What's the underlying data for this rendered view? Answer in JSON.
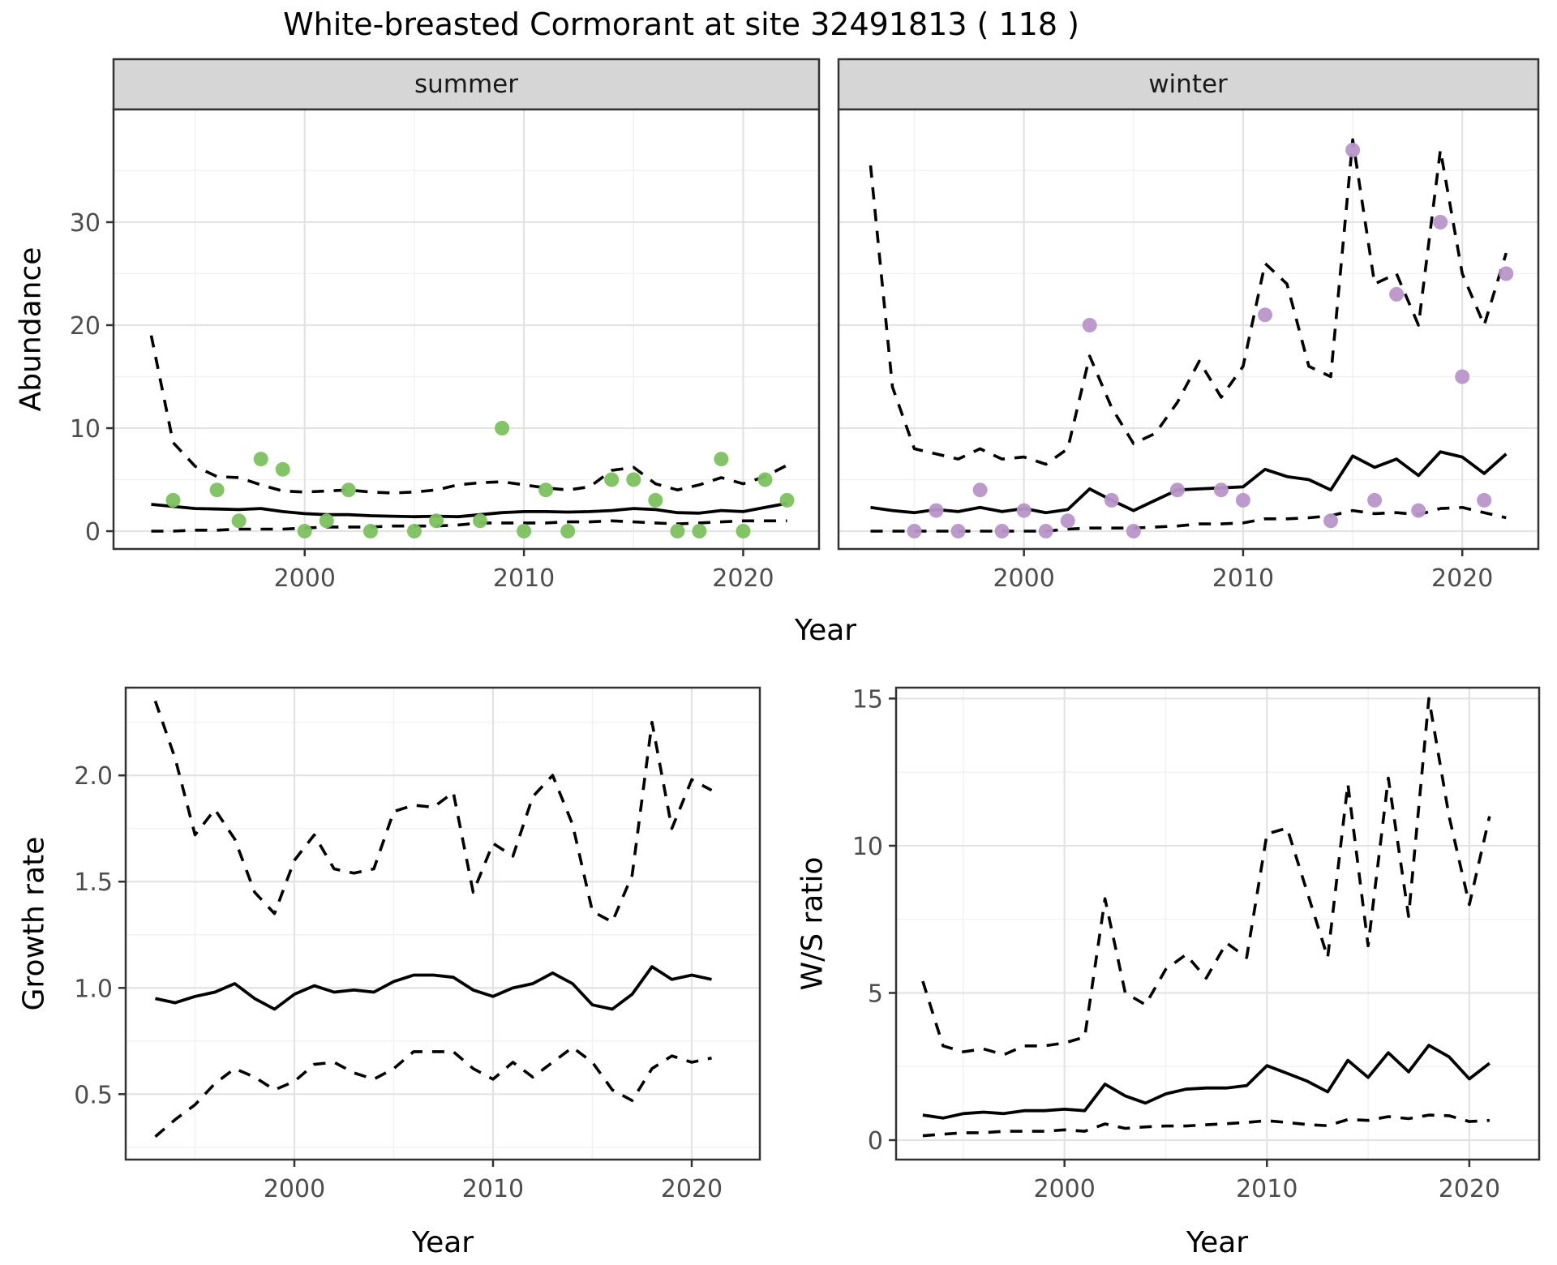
{
  "title": "White-breasted Cormorant at site 32491813 ( 118 )",
  "labels": {
    "facet_summer": "summer",
    "facet_winter": "winter",
    "abundance": "Abundance",
    "year": "Year",
    "growth_rate": "Growth rate",
    "ws_ratio": "W/S ratio"
  },
  "colors": {
    "background": "#ffffff",
    "strip_fill": "#d6d6d6",
    "panel_border": "#333333",
    "grid_major": "#e3e3e3",
    "grid_minor": "#f1f1f1",
    "tick_label": "#4d4d4d",
    "line": "#000000",
    "summer_point": "#7cc25e",
    "winter_point": "#b896c9"
  },
  "chart_data": {
    "type": "line",
    "description": "Four-panel time-series figure: faceted abundance (summer, winter) with observed points, modeled mean (solid) and credible interval (dashed); plus growth rate and winter/summer ratio panels with mean and CI.",
    "strips": [
      {
        "key": "summer",
        "l": 140,
        "t": 73,
        "r": 1010,
        "b": 135
      },
      {
        "key": "winter",
        "l": 1034,
        "t": 73,
        "r": 1897,
        "b": 135
      }
    ],
    "panels": [
      {
        "key": "summer",
        "px": {
          "l": 140,
          "t": 135,
          "r": 1010,
          "b": 677
        },
        "x": {
          "min": 1991.28,
          "max": 2023.46,
          "major": [
            2000,
            2010,
            2020
          ],
          "minor": [
            1995,
            2005,
            2015
          ],
          "labels": [
            "2000",
            "2010",
            "2020"
          ]
        },
        "y": {
          "min": -1.73,
          "max": 40.94,
          "major": [
            0,
            10,
            20,
            30
          ],
          "minor": [
            5,
            15,
            25,
            35
          ],
          "labels": [
            "0",
            "10",
            "20",
            "30"
          ],
          "show_labels": true
        },
        "years": [
          1993,
          1994,
          1995,
          1996,
          1997,
          1998,
          1999,
          2000,
          2001,
          2002,
          2003,
          2004,
          2005,
          2006,
          2007,
          2008,
          2009,
          2010,
          2011,
          2012,
          2013,
          2014,
          2015,
          2016,
          2017,
          2018,
          2019,
          2020,
          2021,
          2022
        ],
        "mean": [
          2.6,
          2.4,
          2.2,
          2.15,
          2.1,
          2.2,
          1.9,
          1.7,
          1.6,
          1.6,
          1.5,
          1.45,
          1.4,
          1.45,
          1.4,
          1.6,
          1.8,
          1.9,
          1.9,
          1.85,
          1.9,
          2.0,
          2.2,
          2.1,
          1.8,
          1.75,
          2.0,
          1.9,
          2.3,
          2.7
        ],
        "upper": [
          19,
          8.6,
          6.3,
          5.3,
          5.2,
          4.5,
          3.9,
          3.8,
          3.9,
          4.0,
          3.8,
          3.7,
          3.8,
          4.0,
          4.5,
          4.7,
          4.8,
          4.5,
          4.2,
          4.0,
          4.3,
          5.9,
          6.2,
          4.6,
          4.0,
          4.5,
          5.2,
          4.6,
          5.3,
          6.4
        ],
        "lower": [
          0,
          0,
          0.1,
          0.1,
          0.2,
          0.2,
          0.2,
          0.3,
          0.4,
          0.4,
          0.4,
          0.5,
          0.5,
          0.5,
          0.6,
          0.8,
          0.8,
          0.8,
          0.8,
          0.9,
          0.9,
          1.0,
          0.9,
          0.8,
          0.7,
          0.8,
          0.9,
          1.0,
          1.0,
          1.0
        ],
        "points": [
          [
            1994,
            3
          ],
          [
            1996,
            4
          ],
          [
            1997,
            1
          ],
          [
            1998,
            7
          ],
          [
            1999,
            6
          ],
          [
            2000,
            0
          ],
          [
            2001,
            1
          ],
          [
            2002,
            4
          ],
          [
            2003,
            0
          ],
          [
            2005,
            0
          ],
          [
            2006,
            1
          ],
          [
            2008,
            1
          ],
          [
            2009,
            10
          ],
          [
            2010,
            0
          ],
          [
            2011,
            4
          ],
          [
            2012,
            0
          ],
          [
            2014,
            5
          ],
          [
            2015,
            5
          ],
          [
            2016,
            3
          ],
          [
            2017,
            0
          ],
          [
            2018,
            0
          ],
          [
            2019,
            7
          ],
          [
            2020,
            0
          ],
          [
            2021,
            5
          ],
          [
            2022,
            3
          ]
        ],
        "point_color": "#7cc25e"
      },
      {
        "key": "winter",
        "px": {
          "l": 1034,
          "t": 135,
          "r": 1897,
          "b": 677
        },
        "x": {
          "min": 1991.54,
          "max": 2023.47,
          "major": [
            2000,
            2010,
            2020
          ],
          "minor": [
            1995,
            2005,
            2015
          ],
          "labels": [
            "2000",
            "2010",
            "2020"
          ]
        },
        "y": {
          "min": -1.73,
          "max": 40.94,
          "major": [
            0,
            10,
            20,
            30
          ],
          "minor": [
            5,
            15,
            25,
            35
          ],
          "labels": [
            "0",
            "10",
            "20",
            "30"
          ],
          "show_labels": false
        },
        "years": [
          1993,
          1994,
          1995,
          1996,
          1997,
          1998,
          1999,
          2000,
          2001,
          2002,
          2003,
          2004,
          2005,
          2006,
          2007,
          2008,
          2009,
          2010,
          2011,
          2012,
          2013,
          2014,
          2015,
          2016,
          2017,
          2018,
          2019,
          2020,
          2021,
          2022
        ],
        "mean": [
          2.3,
          2.0,
          1.8,
          2.1,
          1.9,
          2.3,
          1.9,
          2.2,
          1.8,
          2.1,
          4.1,
          3.0,
          2.0,
          3.0,
          4.0,
          4.1,
          4.2,
          4.3,
          6.0,
          5.3,
          5.0,
          4.0,
          7.3,
          6.2,
          7.0,
          5.4,
          7.7,
          7.2,
          5.6,
          7.5
        ],
        "upper": [
          35.5,
          14,
          8,
          7.5,
          7,
          8,
          7,
          7.2,
          6.5,
          8,
          17,
          12,
          8.5,
          9.5,
          12.5,
          16.5,
          13,
          16,
          26,
          24,
          16,
          15,
          38,
          24,
          25,
          20,
          37,
          25,
          20,
          27
        ],
        "lower": [
          0,
          0,
          0,
          0,
          0,
          0,
          0,
          0,
          0,
          0.2,
          0.3,
          0.3,
          0.3,
          0.4,
          0.5,
          0.7,
          0.7,
          0.8,
          1.2,
          1.2,
          1.3,
          1.5,
          2.0,
          1.7,
          1.8,
          1.6,
          2.2,
          2.3,
          1.8,
          1.3
        ],
        "points": [
          [
            1995,
            0
          ],
          [
            1996,
            2
          ],
          [
            1997,
            0
          ],
          [
            1998,
            4
          ],
          [
            1999,
            0
          ],
          [
            2000,
            2
          ],
          [
            2001,
            0
          ],
          [
            2002,
            1
          ],
          [
            2003,
            20
          ],
          [
            2004,
            3
          ],
          [
            2005,
            0
          ],
          [
            2007,
            4
          ],
          [
            2009,
            4
          ],
          [
            2010,
            3
          ],
          [
            2011,
            21
          ],
          [
            2014,
            1
          ],
          [
            2015,
            37
          ],
          [
            2016,
            3
          ],
          [
            2017,
            23
          ],
          [
            2018,
            2
          ],
          [
            2019,
            30
          ],
          [
            2020,
            15
          ],
          [
            2021,
            3
          ],
          [
            2022,
            25
          ]
        ],
        "point_color": "#b896c9"
      },
      {
        "key": "growth",
        "px": {
          "l": 155,
          "t": 848,
          "r": 937,
          "b": 1430
        },
        "x": {
          "min": 1991.51,
          "max": 2023.43,
          "major": [
            2000,
            2010,
            2020
          ],
          "minor": [
            1995,
            2005,
            2015
          ],
          "labels": [
            "2000",
            "2010",
            "2020"
          ]
        },
        "y": {
          "min": 0.192,
          "max": 2.413,
          "major": [
            0.5,
            1.0,
            1.5,
            2.0
          ],
          "minor": [
            0.25,
            0.75,
            1.25,
            1.75,
            2.25
          ],
          "labels": [
            "0.5",
            "1.0",
            "1.5",
            "2.0"
          ],
          "show_labels": true
        },
        "years": [
          1993,
          1994,
          1995,
          1996,
          1997,
          1998,
          1999,
          2000,
          2001,
          2002,
          2003,
          2004,
          2005,
          2006,
          2007,
          2008,
          2009,
          2010,
          2011,
          2012,
          2013,
          2014,
          2015,
          2016,
          2017,
          2018,
          2019,
          2020,
          2021
        ],
        "mean": [
          0.95,
          0.93,
          0.96,
          0.98,
          1.02,
          0.95,
          0.9,
          0.97,
          1.01,
          0.98,
          0.99,
          0.98,
          1.03,
          1.06,
          1.06,
          1.05,
          0.99,
          0.96,
          1.0,
          1.02,
          1.07,
          1.02,
          0.92,
          0.9,
          0.97,
          1.1,
          1.04,
          1.06,
          1.04
        ],
        "upper": [
          2.35,
          2.08,
          1.72,
          1.84,
          1.7,
          1.45,
          1.35,
          1.6,
          1.72,
          1.56,
          1.54,
          1.56,
          1.83,
          1.86,
          1.85,
          1.92,
          1.45,
          1.68,
          1.62,
          1.9,
          2.0,
          1.77,
          1.36,
          1.31,
          1.53,
          2.25,
          1.75,
          1.98,
          1.93
        ],
        "lower": [
          0.3,
          0.38,
          0.45,
          0.55,
          0.62,
          0.58,
          0.52,
          0.56,
          0.64,
          0.65,
          0.6,
          0.57,
          0.62,
          0.7,
          0.7,
          0.7,
          0.62,
          0.57,
          0.65,
          0.58,
          0.65,
          0.72,
          0.65,
          0.52,
          0.47,
          0.62,
          0.68,
          0.65,
          0.67
        ],
        "points": [],
        "point_color": "#000000"
      },
      {
        "key": "ws",
        "px": {
          "l": 1105,
          "t": 848,
          "r": 1898,
          "b": 1430
        },
        "x": {
          "min": 1991.68,
          "max": 2023.45,
          "major": [
            2000,
            2010,
            2020
          ],
          "minor": [
            1995,
            2005,
            2015
          ],
          "labels": [
            "2000",
            "2010",
            "2020"
          ]
        },
        "y": {
          "min": -0.661,
          "max": 15.37,
          "major": [
            0,
            5,
            10,
            15
          ],
          "minor": [
            2.5,
            7.5,
            12.5
          ],
          "labels": [
            "0",
            "5",
            "10",
            "15"
          ],
          "show_labels": true
        },
        "years": [
          1993,
          1994,
          1995,
          1996,
          1997,
          1998,
          1999,
          2000,
          2001,
          2002,
          2003,
          2004,
          2005,
          2006,
          2007,
          2008,
          2009,
          2010,
          2011,
          2012,
          2013,
          2014,
          2015,
          2016,
          2017,
          2018,
          2019,
          2020,
          2021
        ],
        "mean": [
          0.85,
          0.75,
          0.9,
          0.95,
          0.9,
          1.0,
          1.0,
          1.05,
          1.0,
          1.9,
          1.5,
          1.26,
          1.57,
          1.73,
          1.77,
          1.77,
          1.85,
          2.53,
          2.27,
          2.0,
          1.64,
          2.71,
          2.13,
          2.97,
          2.32,
          3.22,
          2.83,
          2.08,
          2.61
        ],
        "upper": [
          5.4,
          3.2,
          3.0,
          3.1,
          2.9,
          3.2,
          3.2,
          3.3,
          3.5,
          8.2,
          5.0,
          4.6,
          5.8,
          6.3,
          5.5,
          6.7,
          6.2,
          10.4,
          10.6,
          8.4,
          6.2,
          12.1,
          6.6,
          12.3,
          7.6,
          15.0,
          11.0,
          8.0,
          11.0
        ],
        "lower": [
          0.15,
          0.2,
          0.25,
          0.25,
          0.3,
          0.3,
          0.3,
          0.35,
          0.3,
          0.55,
          0.4,
          0.45,
          0.48,
          0.48,
          0.52,
          0.56,
          0.6,
          0.66,
          0.6,
          0.53,
          0.49,
          0.7,
          0.67,
          0.8,
          0.73,
          0.85,
          0.83,
          0.63,
          0.67
        ],
        "points": [],
        "point_color": "#000000"
      }
    ],
    "style": {
      "mean_width": 3.8,
      "ci_width": 3.6,
      "dash": "15 12",
      "point_radius": 9,
      "border_width": 2.5,
      "grid_major_width": 2.2,
      "grid_minor_width": 1.4,
      "tick_len": 9,
      "tick_font": 30
    }
  }
}
